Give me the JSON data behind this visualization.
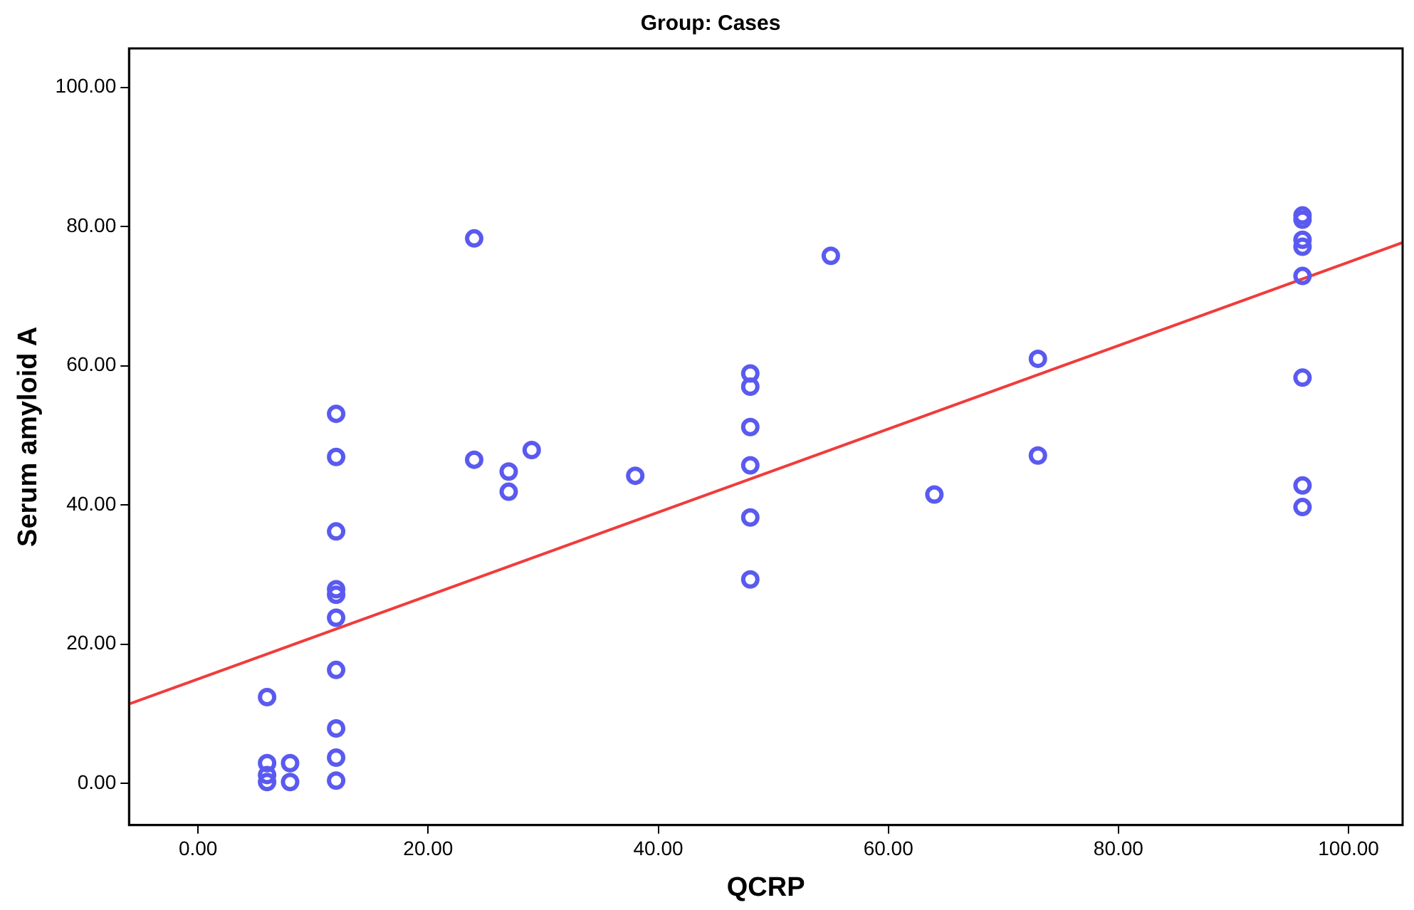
{
  "chart_data": {
    "type": "scatter",
    "title": "Group: Cases",
    "xlabel": "QCRP",
    "ylabel": "Serum amyloid A",
    "xlim": [
      -6,
      104.7
    ],
    "ylim": [
      -6,
      105.6
    ],
    "xticks": [
      {
        "value": 0,
        "label": "0.00"
      },
      {
        "value": 20,
        "label": "20.00"
      },
      {
        "value": 40,
        "label": "40.00"
      },
      {
        "value": 60,
        "label": "60.00"
      },
      {
        "value": 80,
        "label": "80.00"
      },
      {
        "value": 100,
        "label": "100.00"
      }
    ],
    "yticks": [
      {
        "value": 0,
        "label": "0.00"
      },
      {
        "value": 20,
        "label": "20.00"
      },
      {
        "value": 40,
        "label": "40.00"
      },
      {
        "value": 60,
        "label": "60.00"
      },
      {
        "value": 80,
        "label": "80.00"
      },
      {
        "value": 100,
        "label": "100.00"
      }
    ],
    "grid": false,
    "legend": false,
    "marker": "circle",
    "series": [
      {
        "type": "scatter",
        "color": "#5a5af0",
        "x": [
          6,
          6,
          6,
          6,
          8,
          8,
          12,
          12,
          12,
          12,
          12,
          12,
          12,
          12,
          12,
          12,
          24,
          24,
          27,
          27,
          29,
          38,
          48,
          48,
          48,
          48,
          48,
          48,
          55,
          64,
          73,
          73,
          96,
          96,
          96,
          96,
          96,
          96,
          96,
          96
        ],
        "values": [
          12.4,
          2.9,
          1.2,
          0.2,
          2.9,
          0.2,
          53.1,
          46.9,
          36.2,
          27.9,
          27.1,
          23.8,
          16.3,
          7.9,
          3.7,
          0.4,
          78.3,
          46.5,
          44.8,
          41.9,
          47.9,
          44.2,
          58.9,
          57.0,
          51.2,
          45.7,
          38.2,
          29.3,
          75.8,
          41.5,
          61.0,
          47.1,
          81.6,
          81.0,
          78.1,
          77.1,
          72.9,
          58.3,
          42.8,
          39.7
        ]
      },
      {
        "type": "line",
        "color": "#f03c3c",
        "marker": "none",
        "line_style": "solid",
        "x": [
          -6,
          104.7
        ],
        "values": [
          11.4,
          77.7
        ]
      }
    ]
  }
}
